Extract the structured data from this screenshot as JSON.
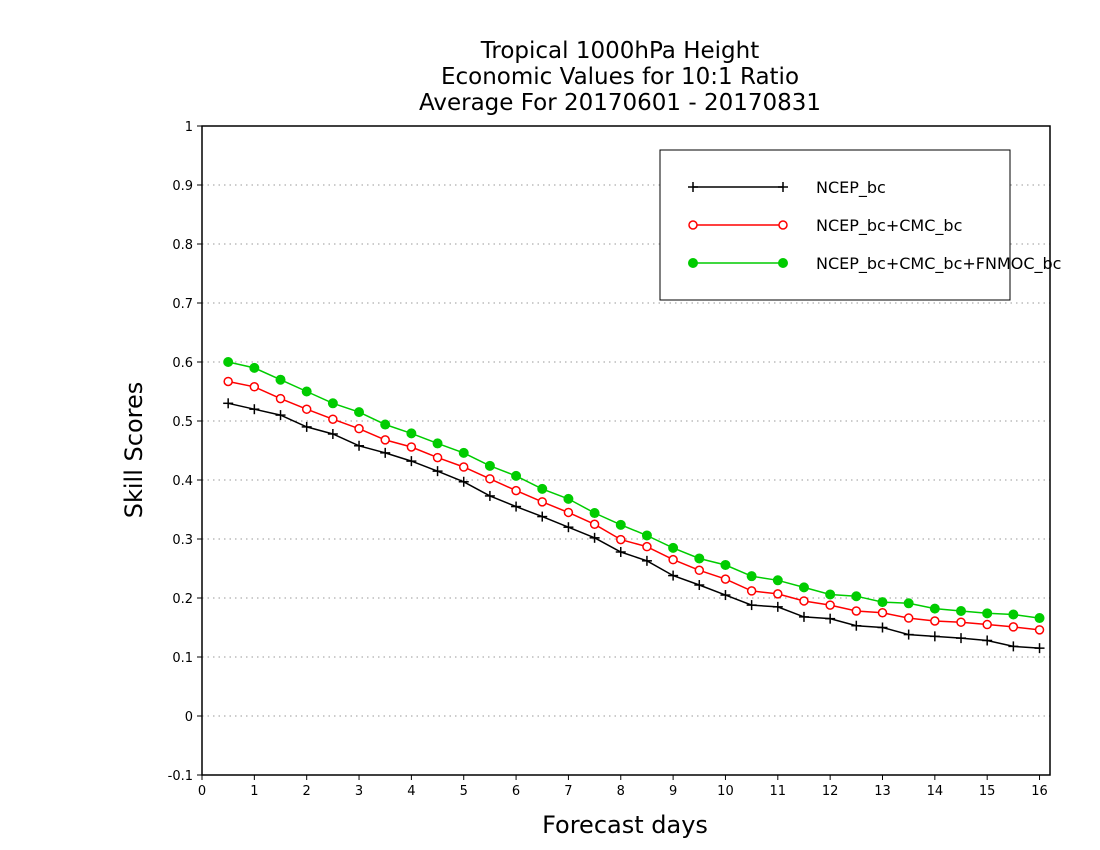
{
  "chart_data": {
    "type": "line",
    "title": [
      "Tropical 1000hPa Height",
      "Economic Values for 10:1 Ratio",
      "Average For 20170601 - 20170831"
    ],
    "xlabel": "Forecast days",
    "ylabel": "Skill Scores",
    "xlim": [
      0,
      16.2
    ],
    "ylim": [
      -0.1,
      1
    ],
    "xticks": [
      0,
      1,
      2,
      3,
      4,
      5,
      6,
      7,
      8,
      9,
      10,
      11,
      12,
      13,
      14,
      15,
      16
    ],
    "xtick_labels": [
      "0",
      "1",
      "2",
      "3",
      "4",
      "5",
      "6",
      "7",
      "8",
      "9",
      "10",
      "11",
      "12",
      "13",
      "14",
      "15",
      "16"
    ],
    "yticks": [
      -0.1,
      0,
      0.1,
      0.2,
      0.3,
      0.4,
      0.5,
      0.6,
      0.7,
      0.8,
      0.9,
      1
    ],
    "ytick_labels": [
      "-0.1",
      "0",
      "0.1",
      "0.2",
      "0.3",
      "0.4",
      "0.5",
      "0.6",
      "0.7",
      "0.8",
      "0.9",
      "1"
    ],
    "grid": "horizontal dotted",
    "legend_position": "top-right",
    "x": [
      0.5,
      1,
      1.5,
      2,
      2.5,
      3,
      3.5,
      4,
      4.5,
      5,
      5.5,
      6,
      6.5,
      7,
      7.5,
      8,
      8.5,
      9,
      9.5,
      10,
      10.5,
      11,
      11.5,
      12,
      12.5,
      13,
      13.5,
      14,
      14.5,
      15,
      15.5,
      16
    ],
    "series": [
      {
        "name": "NCEP_bc",
        "color": "#000000",
        "marker": "plus",
        "values": [
          0.53,
          0.52,
          0.51,
          0.49,
          0.478,
          0.458,
          0.446,
          0.432,
          0.415,
          0.397,
          0.373,
          0.355,
          0.338,
          0.32,
          0.302,
          0.278,
          0.263,
          0.238,
          0.222,
          0.205,
          0.188,
          0.185,
          0.168,
          0.165,
          0.153,
          0.15,
          0.138,
          0.135,
          0.132,
          0.128,
          0.118,
          0.115
        ]
      },
      {
        "name": "NCEP_bc+CMC_bc",
        "color": "#ff0000",
        "marker": "open-circle",
        "values": [
          0.567,
          0.558,
          0.538,
          0.52,
          0.503,
          0.487,
          0.468,
          0.456,
          0.438,
          0.422,
          0.402,
          0.382,
          0.363,
          0.345,
          0.325,
          0.299,
          0.287,
          0.265,
          0.247,
          0.232,
          0.212,
          0.207,
          0.195,
          0.188,
          0.178,
          0.175,
          0.166,
          0.161,
          0.159,
          0.155,
          0.151,
          0.146
        ]
      },
      {
        "name": "NCEP_bc+CMC_bc+FNMOC_bc",
        "color": "#00cc00",
        "marker": "filled-circle",
        "values": [
          0.6,
          0.59,
          0.57,
          0.55,
          0.53,
          0.515,
          0.494,
          0.479,
          0.462,
          0.446,
          0.424,
          0.407,
          0.385,
          0.368,
          0.344,
          0.324,
          0.306,
          0.285,
          0.267,
          0.256,
          0.237,
          0.23,
          0.218,
          0.206,
          0.203,
          0.193,
          0.191,
          0.182,
          0.178,
          0.174,
          0.172,
          0.166
        ]
      }
    ]
  }
}
